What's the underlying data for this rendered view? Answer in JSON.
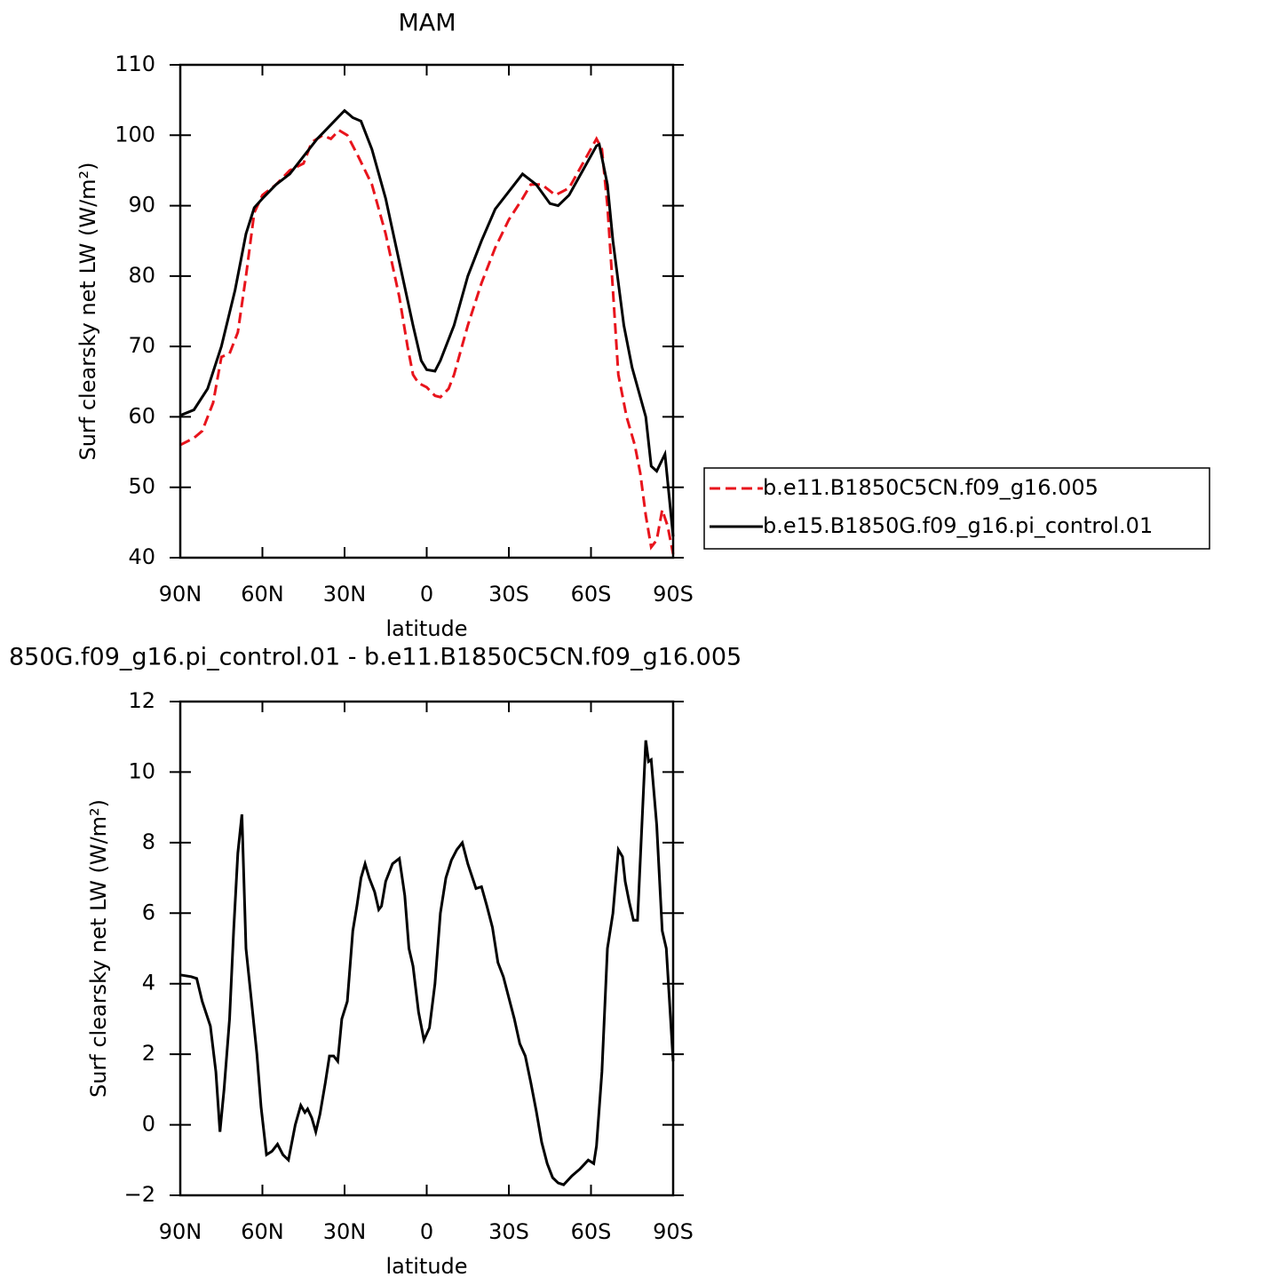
{
  "chart_data": [
    {
      "type": "line",
      "title": "MAM",
      "xlabel": "latitude",
      "ylabel": "Surf clearsky net LW (W/m²)",
      "xlim": [
        90,
        -90
      ],
      "ylim": [
        40,
        110
      ],
      "xticks": [
        {
          "value": 90,
          "label": "90N"
        },
        {
          "value": 60,
          "label": "60N"
        },
        {
          "value": 30,
          "label": "30N"
        },
        0,
        {
          "value": -30,
          "label": "30S"
        },
        {
          "value": -60,
          "label": "60S"
        },
        {
          "value": -90,
          "label": "90S"
        }
      ],
      "yticks": [
        40,
        50,
        60,
        70,
        80,
        90,
        100,
        110
      ],
      "legend": "right",
      "series": [
        {
          "name": "b.e11.B1850C5CN.f09_g16.005",
          "color": "#e8141c",
          "style": "dashed",
          "x": [
            90,
            85,
            82,
            78,
            75,
            72,
            69,
            66,
            63,
            60,
            55,
            50,
            45,
            42,
            38,
            35,
            32,
            29,
            25,
            20,
            15,
            10,
            7,
            5,
            3,
            0,
            -3,
            -5,
            -8,
            -10,
            -15,
            -20,
            -25,
            -30,
            -35,
            -38,
            -42,
            -47,
            -52,
            -57,
            -62,
            -64,
            -66,
            -68,
            -70,
            -73,
            -76,
            -78,
            -80,
            -82,
            -84,
            -86,
            -88,
            -90
          ],
          "values": [
            56,
            57,
            58,
            62,
            68.5,
            69,
            72,
            80,
            89,
            91.5,
            93,
            95,
            96,
            99,
            100,
            99.5,
            100.7,
            100,
            97,
            93,
            86,
            77,
            70,
            66,
            64.8,
            64.2,
            63,
            62.8,
            64,
            66,
            73,
            79,
            84,
            88,
            91,
            93,
            93,
            91.5,
            92.5,
            96,
            99.5,
            98,
            90,
            78,
            66,
            60,
            56,
            52,
            46,
            41.5,
            42.5,
            46.8,
            44.5,
            40.5
          ]
        },
        {
          "name": "b.e15.B1850G.f09_g16.pi_control.01",
          "color": "#000000",
          "style": "solid",
          "x": [
            90,
            85,
            80,
            75,
            70,
            66,
            63,
            60,
            55,
            50,
            45,
            40,
            35,
            30,
            27,
            24,
            20,
            15,
            10,
            5,
            2,
            0,
            -3,
            -5,
            -10,
            -15,
            -20,
            -25,
            -30,
            -35,
            -40,
            -45,
            -48,
            -52,
            -57,
            -62,
            -63,
            -66,
            -68,
            -72,
            -75,
            -80,
            -82,
            -84,
            -87,
            -90
          ],
          "values": [
            60.2,
            61,
            64,
            70,
            78,
            86,
            89.7,
            91,
            93,
            94.5,
            97,
            99.5,
            101.5,
            103.5,
            102.5,
            102,
            98,
            91,
            82,
            73,
            68,
            66.7,
            66.5,
            68,
            73,
            80,
            85,
            89.5,
            92,
            94.5,
            93,
            90.3,
            90,
            91.5,
            95,
            98.5,
            98.7,
            93,
            85,
            73,
            67,
            60,
            53,
            52.3,
            54.7,
            43
          ]
        }
      ]
    },
    {
      "type": "line",
      "title": "850G.f09_g16.pi_control.01 - b.e11.B1850C5CN.f09_g16.005",
      "xlabel": "latitude",
      "ylabel": "Surf clearsky net LW (W/m²)",
      "xlim": [
        90,
        -90
      ],
      "ylim": [
        -2,
        12
      ],
      "xticks": [
        {
          "value": 90,
          "label": "90N"
        },
        {
          "value": 60,
          "label": "60N"
        },
        {
          "value": 30,
          "label": "30N"
        },
        0,
        {
          "value": -30,
          "label": "30S"
        },
        {
          "value": -60,
          "label": "60S"
        },
        {
          "value": -90,
          "label": "90S"
        }
      ],
      "yticks": [
        {
          "value": -2,
          "label": "−2"
        },
        0,
        2,
        4,
        6,
        8,
        10,
        12
      ],
      "series": [
        {
          "color": "#000000",
          "style": "solid",
          "x": [
            90,
            86,
            84,
            82,
            79,
            77,
            75.5,
            74,
            72,
            70.5,
            69,
            67.5,
            66,
            64,
            62,
            60.5,
            58.5,
            56.5,
            54.5,
            52.5,
            50.5,
            48,
            46,
            44.5,
            43.5,
            42,
            40.5,
            39,
            37,
            35.5,
            34,
            32.5,
            31,
            29,
            27,
            25.5,
            24,
            22.5,
            21,
            19,
            17.5,
            16.5,
            15,
            12.5,
            10,
            8,
            6.5,
            5,
            3,
            1,
            -1,
            -3,
            -5,
            -7,
            -9,
            -11,
            -13,
            -15,
            -18,
            -20,
            -22,
            -24,
            -26,
            -28,
            -30,
            -32,
            -34,
            -36,
            -38,
            -40,
            -42,
            -44,
            -46,
            -48,
            -50,
            -53,
            -56,
            -59,
            -61,
            -62,
            -64,
            -66,
            -68,
            -70,
            -71.5,
            -72.5,
            -74,
            -75.5,
            -77,
            -78,
            -80,
            -81,
            -82,
            -84,
            -86,
            -87.5,
            -90
          ],
          "values": [
            4.25,
            4.2,
            4.15,
            3.5,
            2.8,
            1.5,
            -0.2,
            1,
            3,
            5.5,
            7.7,
            8.8,
            5,
            3.5,
            2,
            0.5,
            -0.85,
            -0.75,
            -0.55,
            -0.85,
            -1,
            0,
            0.55,
            0.35,
            0.45,
            0.2,
            -0.2,
            0.3,
            1.2,
            1.95,
            1.95,
            1.8,
            3,
            3.5,
            5.5,
            6.2,
            7,
            7.4,
            7,
            6.6,
            6.1,
            6.2,
            6.9,
            7.4,
            7.55,
            6.5,
            5,
            4.5,
            3.2,
            2.4,
            2.75,
            4,
            6,
            7,
            7.5,
            7.8,
            8,
            7.4,
            6.7,
            6.75,
            6.2,
            5.6,
            4.6,
            4.2,
            3.6,
            3,
            2.3,
            1.95,
            1.2,
            0.4,
            -0.5,
            -1.1,
            -1.5,
            -1.65,
            -1.7,
            -1.45,
            -1.25,
            -1,
            -1.1,
            -0.6,
            1.5,
            5,
            6,
            7.8,
            7.6,
            6.9,
            6.3,
            5.8,
            5.8,
            7.5,
            10.9,
            10.3,
            10.35,
            8.5,
            5.5,
            5,
            1.8
          ]
        }
      ]
    }
  ]
}
